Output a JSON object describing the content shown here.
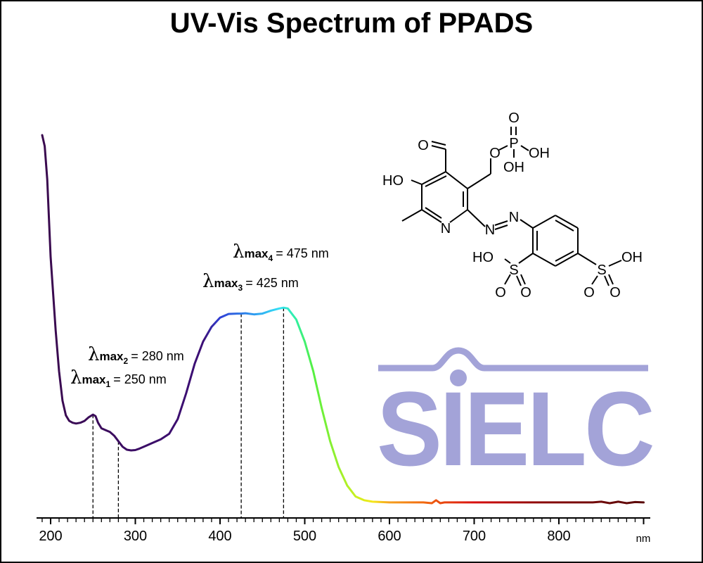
{
  "chart_data": {
    "type": "line",
    "title": "UV-Vis Spectrum of PPADS",
    "xlabel": "",
    "x_unit": "nm",
    "ylabel": "",
    "xlim": [
      190,
      900
    ],
    "ylim": [
      0,
      1
    ],
    "x_ticks": [
      200,
      300,
      400,
      500,
      600,
      700,
      800
    ],
    "grid": false,
    "series": [
      {
        "x": [
          190,
          193,
          196,
          200,
          203,
          206,
          210,
          214,
          218,
          222,
          226,
          230,
          235,
          240,
          245,
          250,
          253,
          256,
          260,
          265,
          270,
          275,
          280,
          285,
          290,
          295,
          300,
          305,
          310,
          320,
          330,
          340,
          350,
          360,
          370,
          380,
          390,
          400,
          410,
          420,
          425,
          430,
          440,
          450,
          460,
          470,
          475,
          480,
          490,
          500,
          510,
          520,
          530,
          540,
          550,
          560,
          570,
          580,
          590,
          600,
          620,
          640,
          650,
          655,
          660,
          665,
          680,
          700,
          720,
          740,
          760,
          780,
          800,
          820,
          840,
          850,
          860,
          870,
          880,
          890,
          900
        ],
        "y": [
          1.0,
          0.97,
          0.88,
          0.67,
          0.57,
          0.47,
          0.36,
          0.28,
          0.24,
          0.225,
          0.22,
          0.218,
          0.22,
          0.225,
          0.235,
          0.242,
          0.238,
          0.22,
          0.205,
          0.2,
          0.195,
          0.185,
          0.17,
          0.155,
          0.147,
          0.145,
          0.146,
          0.15,
          0.155,
          0.165,
          0.175,
          0.19,
          0.23,
          0.3,
          0.38,
          0.44,
          0.48,
          0.505,
          0.515,
          0.516,
          0.516,
          0.517,
          0.514,
          0.516,
          0.524,
          0.53,
          0.532,
          0.53,
          0.5,
          0.44,
          0.36,
          0.26,
          0.17,
          0.1,
          0.05,
          0.02,
          0.01,
          0.006,
          0.005,
          0.004,
          0.004,
          0.004,
          0.002,
          0.01,
          0.002,
          0.004,
          0.004,
          0.004,
          0.004,
          0.004,
          0.004,
          0.004,
          0.004,
          0.004,
          0.004,
          0.006,
          0.002,
          0.006,
          0.002,
          0.005,
          0.004
        ]
      }
    ],
    "annotations": [
      {
        "symbol": "λ",
        "label": "max",
        "subscript": "1",
        "value": "= 250 nm",
        "x": 250
      },
      {
        "symbol": "λ",
        "label": "max",
        "subscript": "2",
        "value": "= 280 nm",
        "x": 280
      },
      {
        "symbol": "λ",
        "label": "max",
        "subscript": "3",
        "value": "= 425 nm",
        "x": 425
      },
      {
        "symbol": "λ",
        "label": "max",
        "subscript": "4",
        "value": "= 475 nm",
        "x": 475
      }
    ]
  },
  "structure_labels": {
    "o_top": "O",
    "p": "P",
    "o_ester": "O",
    "oh_p1": "OH",
    "oh_p2": "OH",
    "o_aldehyde": "O",
    "ho_ring": "HO",
    "n_ring": "N",
    "n_azo1": "N",
    "n_azo2": "N",
    "ho_s1": "HO",
    "s1": "S",
    "o_s1a": "O",
    "o_s1b": "O",
    "s2": "S",
    "oh_s2": "OH",
    "o_s2a": "O",
    "o_s2b": "O"
  },
  "logo": {
    "text": "SIELC",
    "color": "#a3a3d8"
  }
}
